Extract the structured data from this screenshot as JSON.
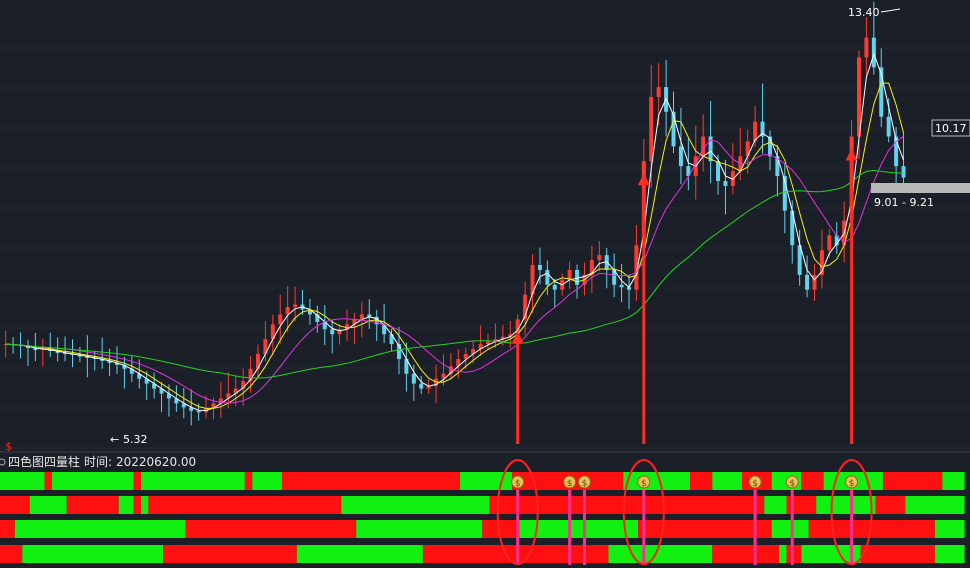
{
  "indicator": {
    "title": "四色图四量柱",
    "time_label": "时间:",
    "time_value": "20220620.00",
    "signal_glyph": "$"
  },
  "price_labels": {
    "high": "13.40",
    "low": "5.32",
    "current": "10.17",
    "range": "9.01 - 9.21"
  },
  "colors": {
    "background": "#1b1f27",
    "up_candle": "#ff3b30",
    "down_candle": "#5fd3ef",
    "ma_white": "#ffffff",
    "ma_yellow": "#f5f01a",
    "ma_magenta": "#e033e0",
    "ma_green": "#22d322",
    "bar_green": "#12f012",
    "bar_red": "#ff1010",
    "signal_line": "#ff2f8f",
    "arrow": "#ff2d22",
    "ellipse": "#ff2222"
  },
  "chart_data": {
    "type": "candlestick",
    "y_range": [
      4.9,
      13.6
    ],
    "close": [
      6.8,
      6.78,
      6.76,
      6.72,
      6.68,
      6.7,
      6.66,
      6.62,
      6.6,
      6.58,
      6.55,
      6.52,
      6.5,
      6.46,
      6.42,
      6.38,
      6.3,
      6.2,
      6.1,
      6.0,
      5.9,
      5.8,
      5.7,
      5.6,
      5.52,
      5.45,
      5.42,
      5.5,
      5.6,
      5.7,
      5.8,
      5.9,
      6.05,
      6.3,
      6.6,
      6.9,
      7.2,
      7.4,
      7.55,
      7.6,
      7.5,
      7.4,
      7.25,
      7.1,
      7.0,
      7.1,
      7.2,
      7.3,
      7.4,
      7.35,
      7.2,
      7.0,
      6.8,
      6.5,
      6.2,
      6.0,
      5.9,
      5.95,
      6.1,
      6.2,
      6.35,
      6.5,
      6.6,
      6.7,
      6.8,
      6.85,
      6.9,
      6.95,
      7.0,
      7.3,
      7.8,
      8.4,
      8.3,
      8.0,
      7.9,
      8.1,
      8.3,
      8.0,
      8.2,
      8.5,
      8.6,
      8.3,
      8.0,
      7.95,
      7.9,
      8.8,
      10.5,
      11.8,
      12.0,
      11.5,
      10.8,
      10.4,
      10.2,
      10.6,
      11.0,
      10.5,
      10.1,
      10.0,
      10.3,
      10.6,
      10.9,
      11.3,
      11.0,
      10.6,
      10.2,
      9.5,
      8.8,
      8.2,
      7.9,
      8.2,
      8.7,
      9.0,
      8.8,
      9.3,
      11.0,
      12.6,
      13.0,
      12.4,
      11.4,
      11.0,
      10.4,
      10.17
    ],
    "ma_windows_shown": [
      "white",
      "yellow",
      "magenta",
      "green"
    ],
    "annotations": [
      {
        "text": "13.40",
        "type": "high"
      },
      {
        "text": "5.32",
        "type": "low"
      },
      {
        "text": "10.17",
        "type": "last"
      },
      {
        "text": "9.01 - 9.21",
        "type": "range"
      }
    ],
    "signals": [
      {
        "index": 69,
        "label": "$",
        "circled": true,
        "arrow": true
      },
      {
        "index": 76,
        "label": "$",
        "circled": false,
        "arrow": false
      },
      {
        "index": 78,
        "label": "$",
        "circled": false,
        "arrow": false
      },
      {
        "index": 86,
        "label": "$",
        "circled": true,
        "arrow": true
      },
      {
        "index": 101,
        "label": "$",
        "circled": false,
        "arrow": false
      },
      {
        "index": 106,
        "label": "$",
        "circled": false,
        "arrow": false
      },
      {
        "index": 114,
        "label": "$",
        "circled": true,
        "arrow": true
      }
    ],
    "bar_rows": [
      [
        [
          "g",
          0,
          6
        ],
        [
          "r",
          6,
          7
        ],
        [
          "g",
          7,
          18
        ],
        [
          "r",
          18,
          19
        ],
        [
          "g",
          19,
          33
        ],
        [
          "r",
          33,
          34
        ],
        [
          "g",
          34,
          38
        ],
        [
          "r",
          38,
          62
        ],
        [
          "g",
          62,
          69
        ],
        [
          "r",
          69,
          84
        ],
        [
          "g",
          84,
          93
        ],
        [
          "r",
          93,
          96
        ],
        [
          "g",
          96,
          100
        ],
        [
          "r",
          100,
          104
        ],
        [
          "g",
          104,
          108
        ],
        [
          "r",
          108,
          111
        ],
        [
          "g",
          111,
          119
        ],
        [
          "r",
          119,
          127
        ],
        [
          "g",
          127,
          130
        ]
      ],
      [
        [
          "r",
          0,
          4
        ],
        [
          "g",
          4,
          9
        ],
        [
          "r",
          9,
          16
        ],
        [
          "g",
          16,
          18
        ],
        [
          "r",
          18,
          19
        ],
        [
          "g",
          19,
          20
        ],
        [
          "r",
          20,
          46
        ],
        [
          "g",
          46,
          66
        ],
        [
          "r",
          66,
          103
        ],
        [
          "g",
          103,
          106
        ],
        [
          "r",
          106,
          110
        ],
        [
          "g",
          110,
          118
        ],
        [
          "r",
          118,
          122
        ],
        [
          "g",
          122,
          130
        ]
      ],
      [
        [
          "r",
          0,
          2
        ],
        [
          "g",
          2,
          25
        ],
        [
          "r",
          25,
          48
        ],
        [
          "g",
          48,
          65
        ],
        [
          "r",
          65,
          70
        ],
        [
          "g",
          70,
          86
        ],
        [
          "r",
          86,
          104
        ],
        [
          "g",
          104,
          109
        ],
        [
          "r",
          109,
          126
        ],
        [
          "g",
          126,
          130
        ]
      ],
      [
        [
          "r",
          0,
          3
        ],
        [
          "g",
          3,
          22
        ],
        [
          "r",
          22,
          40
        ],
        [
          "g",
          40,
          57
        ],
        [
          "r",
          57,
          82
        ],
        [
          "g",
          82,
          96
        ],
        [
          "r",
          96,
          105
        ],
        [
          "g",
          105,
          106
        ],
        [
          "r",
          106,
          108
        ],
        [
          "g",
          108,
          116
        ],
        [
          "r",
          116,
          126
        ],
        [
          "g",
          126,
          130
        ]
      ]
    ]
  }
}
